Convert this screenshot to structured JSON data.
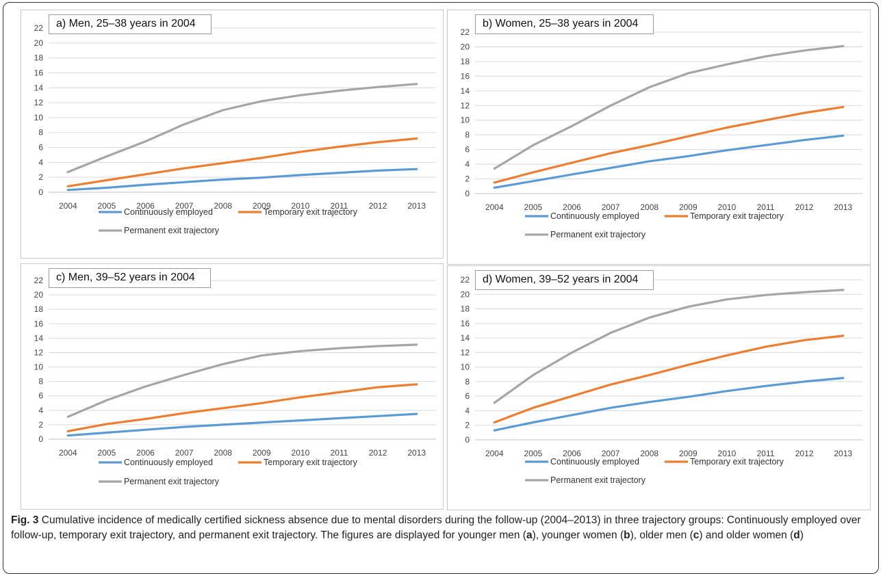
{
  "colors": {
    "continuous": "#5B9BD5",
    "temporary": "#ED7D31",
    "permanent": "#A5A5A5",
    "grid": "#d9d9d9",
    "axis": "#bfbfbf"
  },
  "legend": {
    "continuous": "Continuously employed",
    "temporary": "Temporary exit trajectory",
    "permanent": "Permanent exit trajectory"
  },
  "y_ticks": [
    "0",
    "2",
    "4",
    "6",
    "8",
    "10",
    "12",
    "14",
    "16",
    "18",
    "20",
    "22"
  ],
  "chart_data": [
    {
      "type": "line",
      "title": "a) Men, 25–38 years in 2004",
      "categories": [
        "2004",
        "2005",
        "2006",
        "2007",
        "2008",
        "2009",
        "2010",
        "2011",
        "2012",
        "2013"
      ],
      "ylim": [
        0,
        22
      ],
      "grid": true,
      "legend_placement": "bottom",
      "series": [
        {
          "name": "Continuously employed",
          "values": [
            0.3,
            0.6,
            1.0,
            1.35,
            1.7,
            1.95,
            2.3,
            2.6,
            2.9,
            3.1
          ]
        },
        {
          "name": "Temporary exit trajectory",
          "values": [
            0.8,
            1.6,
            2.4,
            3.2,
            3.9,
            4.6,
            5.4,
            6.1,
            6.7,
            7.2
          ]
        },
        {
          "name": "Permanent exit trajectory",
          "values": [
            2.7,
            4.8,
            6.8,
            9.1,
            11.0,
            12.2,
            13.0,
            13.6,
            14.1,
            14.5
          ]
        }
      ]
    },
    {
      "type": "line",
      "title": "b) Women, 25–38 years in 2004",
      "categories": [
        "2004",
        "2005",
        "2006",
        "2007",
        "2008",
        "2009",
        "2010",
        "2011",
        "2012",
        "2013"
      ],
      "ylim": [
        0,
        22
      ],
      "grid": true,
      "legend_placement": "bottom",
      "series": [
        {
          "name": "Continuously employed",
          "values": [
            0.8,
            1.7,
            2.6,
            3.5,
            4.4,
            5.1,
            5.9,
            6.6,
            7.3,
            7.9
          ]
        },
        {
          "name": "Temporary exit trajectory",
          "values": [
            1.5,
            2.9,
            4.2,
            5.5,
            6.6,
            7.8,
            9.0,
            10.0,
            11.0,
            11.8
          ]
        },
        {
          "name": "Permanent exit trajectory",
          "values": [
            3.4,
            6.6,
            9.2,
            12.0,
            14.5,
            16.4,
            17.6,
            18.7,
            19.5,
            20.1
          ]
        }
      ]
    },
    {
      "type": "line",
      "title": "c) Men, 39–52 years in 2004",
      "categories": [
        "2004",
        "2005",
        "2006",
        "2007",
        "2008",
        "2009",
        "2010",
        "2011",
        "2012",
        "2013"
      ],
      "ylim": [
        0,
        22
      ],
      "grid": true,
      "legend_placement": "bottom",
      "series": [
        {
          "name": "Continuously employed",
          "values": [
            0.5,
            0.9,
            1.3,
            1.7,
            2.0,
            2.3,
            2.6,
            2.9,
            3.2,
            3.5
          ]
        },
        {
          "name": "Temporary exit trajectory",
          "values": [
            1.1,
            2.1,
            2.8,
            3.6,
            4.3,
            5.0,
            5.8,
            6.5,
            7.2,
            7.6
          ]
        },
        {
          "name": "Permanent exit trajectory",
          "values": [
            3.1,
            5.4,
            7.3,
            8.9,
            10.4,
            11.6,
            12.2,
            12.6,
            12.9,
            13.1
          ]
        }
      ]
    },
    {
      "type": "line",
      "title": "d) Women, 39–52 years in 2004",
      "categories": [
        "2004",
        "2005",
        "2006",
        "2007",
        "2008",
        "2009",
        "2010",
        "2011",
        "2012",
        "2013"
      ],
      "ylim": [
        0,
        22
      ],
      "grid": true,
      "legend_placement": "bottom",
      "series": [
        {
          "name": "Continuously employed",
          "values": [
            1.3,
            2.4,
            3.4,
            4.4,
            5.2,
            5.9,
            6.7,
            7.4,
            8.0,
            8.5
          ]
        },
        {
          "name": "Temporary exit trajectory",
          "values": [
            2.4,
            4.4,
            6.0,
            7.6,
            8.9,
            10.3,
            11.6,
            12.8,
            13.7,
            14.3
          ]
        },
        {
          "name": "Permanent exit trajectory",
          "values": [
            5.1,
            8.9,
            12.0,
            14.7,
            16.8,
            18.3,
            19.3,
            19.9,
            20.3,
            20.6
          ]
        }
      ]
    }
  ],
  "caption": {
    "fig_label": "Fig. 3",
    "text_1": " Cumulative incidence of medically certified sickness absence due to mental disorders during the follow-up (2004–2013) in three trajectory groups: Continuously employed over follow-up, temporary exit trajectory, and permanent exit trajectory. The figures are displayed for younger men (",
    "letter_a": "a",
    "text_2": "), younger women (",
    "letter_b": "b",
    "text_3": "), older men (",
    "letter_c": "c",
    "text_4": ") and older women (",
    "letter_d": "d",
    "text_5": ")"
  }
}
